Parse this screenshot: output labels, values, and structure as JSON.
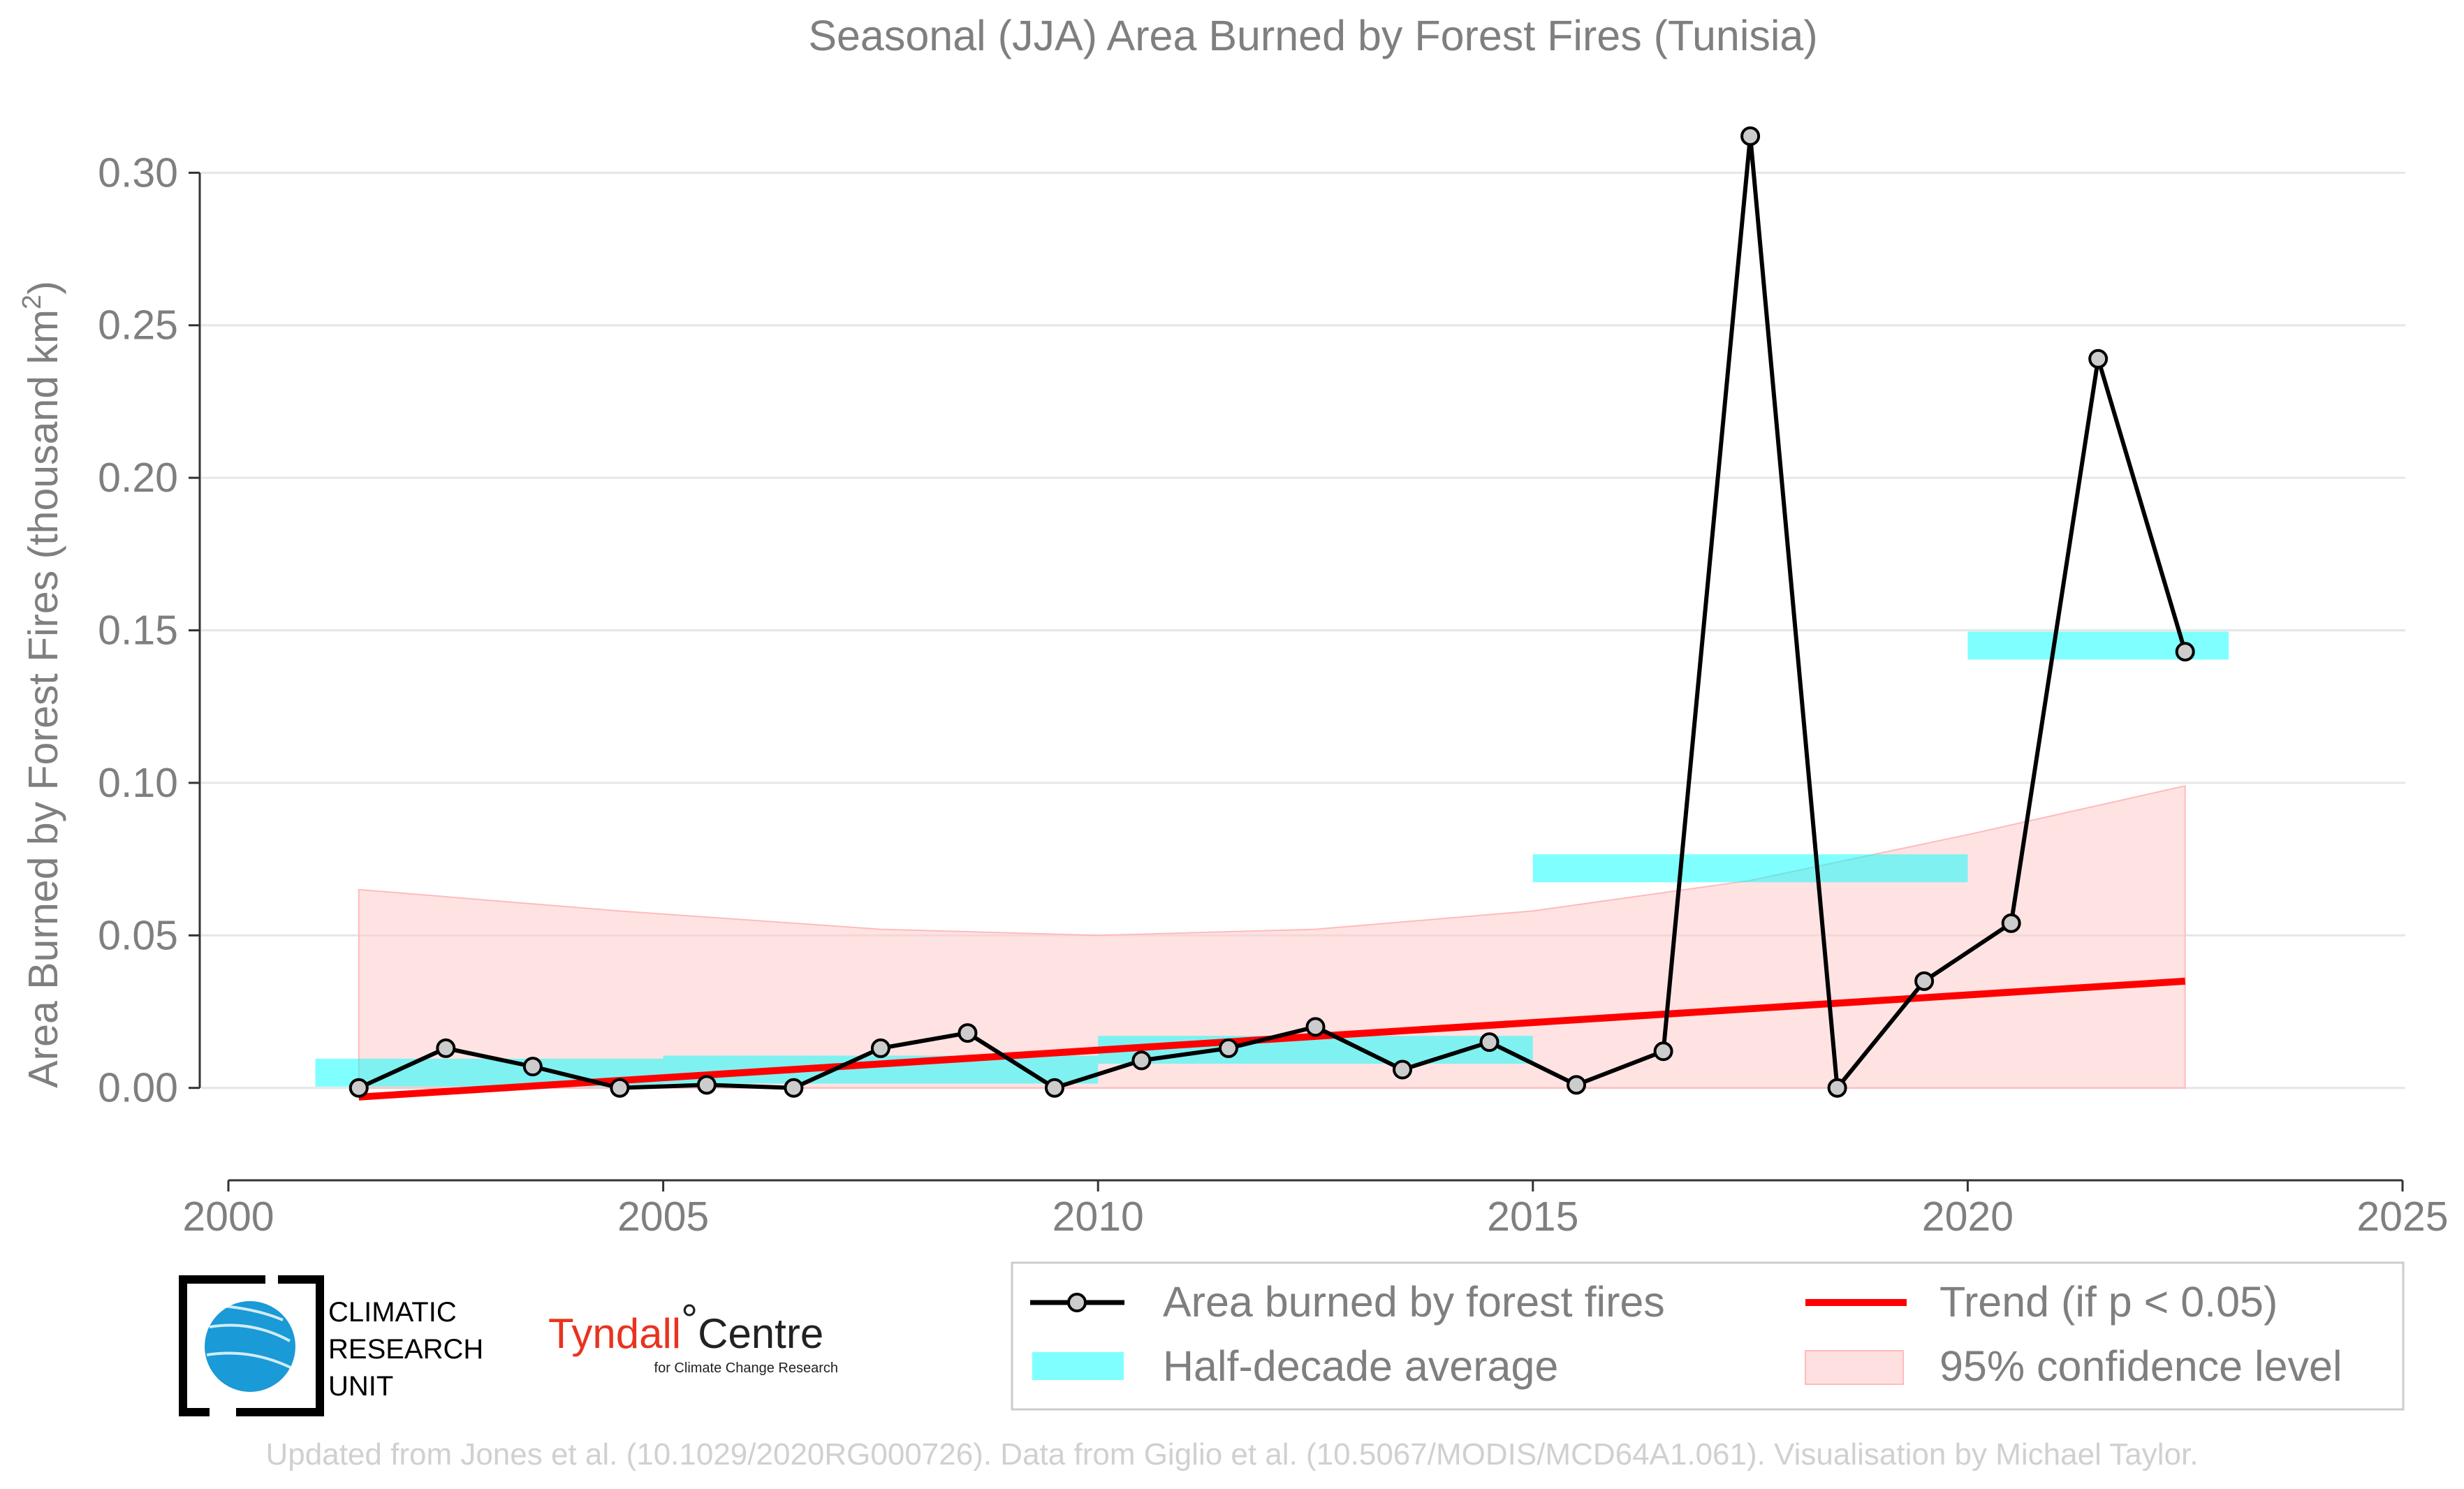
{
  "chart_data": {
    "type": "line",
    "title": "Seasonal (JJA) Area Burned by Forest Fires (Tunisia)",
    "xlabel": "",
    "ylabel": "Area Burned by Forest Fires (thousand km",
    "ylabel_sup": "2",
    "ylabel_close": ")",
    "xlim": [
      2000,
      2025
    ],
    "ylim": [
      -0.028,
      0.32
    ],
    "x_ticks": [
      2000,
      2005,
      2010,
      2015,
      2020,
      2025
    ],
    "y_ticks": [
      0.0,
      0.05,
      0.1,
      0.15,
      0.2,
      0.25,
      0.3
    ],
    "y_tick_labels": [
      "0.00",
      "0.05",
      "0.10",
      "0.15",
      "0.20",
      "0.25",
      "0.30"
    ],
    "grid": "horizontal",
    "legend_position": "bottom-right",
    "series": [
      {
        "name": "Area burned by forest fires",
        "color": "#000000",
        "x": [
          2001.5,
          2002.5,
          2003.5,
          2004.5,
          2005.5,
          2006.5,
          2007.5,
          2008.5,
          2009.5,
          2010.5,
          2011.5,
          2012.5,
          2013.5,
          2014.5,
          2015.5,
          2016.5,
          2017.5,
          2018.5,
          2019.5,
          2020.5,
          2021.5,
          2022.5
        ],
        "y": [
          0.0,
          0.013,
          0.007,
          0.0,
          0.001,
          0.0,
          0.013,
          0.018,
          0.0,
          0.009,
          0.013,
          0.02,
          0.006,
          0.015,
          0.001,
          0.012,
          0.312,
          0.0,
          0.035,
          0.054,
          0.239,
          0.143
        ]
      },
      {
        "name": "Half-decade average",
        "color": "#00ffff",
        "segments": [
          {
            "x0": 2001.0,
            "x1": 2005.0,
            "y": 0.005
          },
          {
            "x0": 2005.0,
            "x1": 2010.0,
            "y": 0.006
          },
          {
            "x0": 2010.0,
            "x1": 2015.0,
            "y": 0.0125
          },
          {
            "x0": 2015.0,
            "x1": 2020.0,
            "y": 0.072
          },
          {
            "x0": 2020.0,
            "x1": 2023.0,
            "y": 0.145
          }
        ]
      },
      {
        "name": "Trend (if p < 0.05)",
        "color": "#ff0000",
        "x": [
          2001.5,
          2022.5
        ],
        "y": [
          -0.003,
          0.035
        ]
      },
      {
        "name": "95% confidence level",
        "color": "#ffcccc",
        "x": [
          2001.5,
          2004.5,
          2007.5,
          2010.0,
          2012.5,
          2015.0,
          2017.5,
          2020.0,
          2022.5
        ],
        "upper": [
          0.065,
          0.058,
          0.052,
          0.05,
          0.052,
          0.058,
          0.068,
          0.083,
          0.099
        ],
        "lower": [
          0.0,
          0.0,
          0.0,
          0.0,
          0.0,
          0.0,
          0.0,
          0.0,
          0.0
        ]
      }
    ]
  },
  "logos": {
    "cru_lines": [
      "CLIMATIC",
      "RESEARCH",
      "UNIT"
    ],
    "tyndall_name": "Tyndall",
    "tyndall_degree": "°",
    "tyndall_centre": "Centre",
    "tyndall_sub": "for Climate Change Research"
  },
  "footer": "Updated from Jones et al. (10.1029/2020RG000726). Data from Giglio et al. (10.5067/MODIS/MCD64A1.061). Visualisation by Michael Taylor."
}
